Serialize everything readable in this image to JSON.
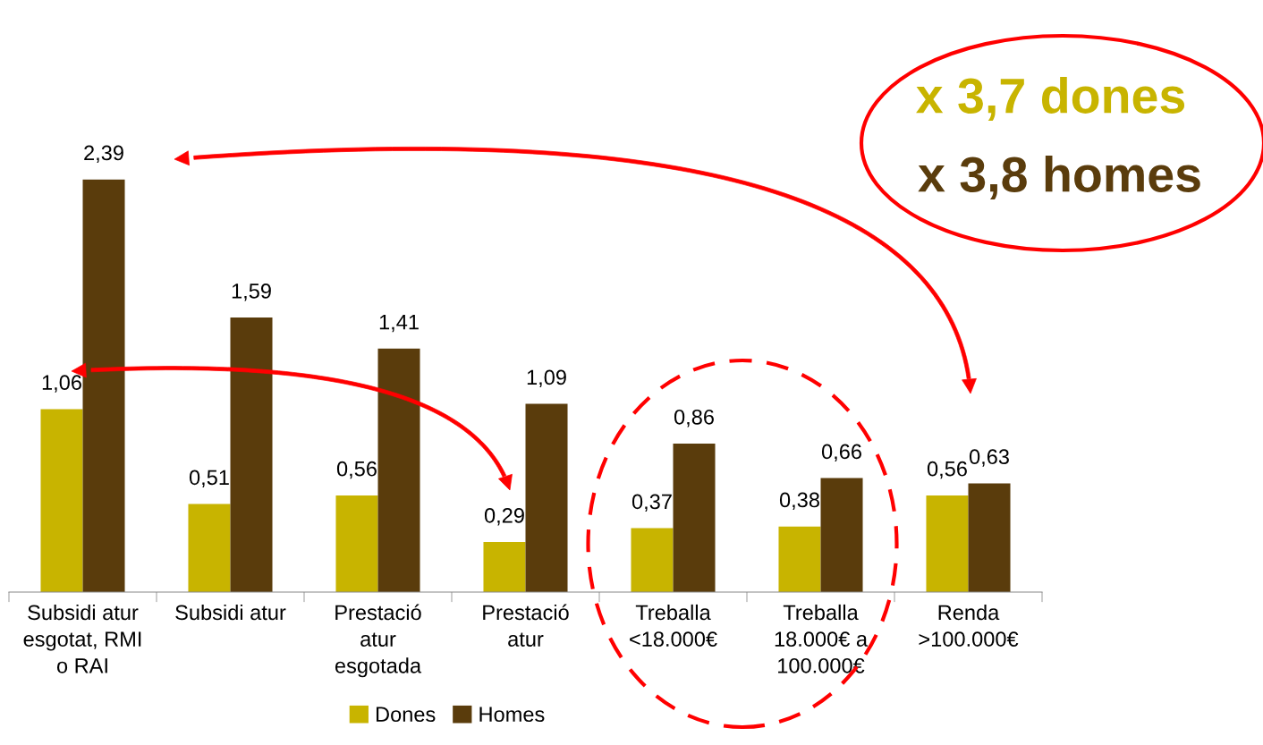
{
  "chart_data": {
    "type": "bar",
    "categories": [
      "Subsidi atur\nesgotat, RMI\no RAI",
      "Subsidi atur",
      "Prestació\natur\nesgotada",
      "Prestació\natur",
      "Treballa\n<18.000€",
      "Treballa\n18.000€ a\n100.000€",
      "Renda\n>100.000€"
    ],
    "series": [
      {
        "name": "Dones",
        "color": "#c8b400",
        "values": [
          1.06,
          0.51,
          0.56,
          0.29,
          0.37,
          0.38,
          0.56
        ],
        "value_labels": [
          "1,06",
          "0,51",
          "0,56",
          "0,29",
          "0,37",
          "0,38",
          "0,56"
        ]
      },
      {
        "name": "Homes",
        "color": "#5a3c0c",
        "values": [
          2.39,
          1.59,
          1.41,
          1.09,
          0.86,
          0.66,
          0.63
        ],
        "value_labels": [
          "2,39",
          "1,59",
          "1,41",
          "1,09",
          "0,86",
          "0,66",
          "0,63"
        ]
      }
    ],
    "annotations": [
      "x 3,7 dones",
      "x 3,8 homes"
    ],
    "legend": "bottom",
    "grid": false
  }
}
